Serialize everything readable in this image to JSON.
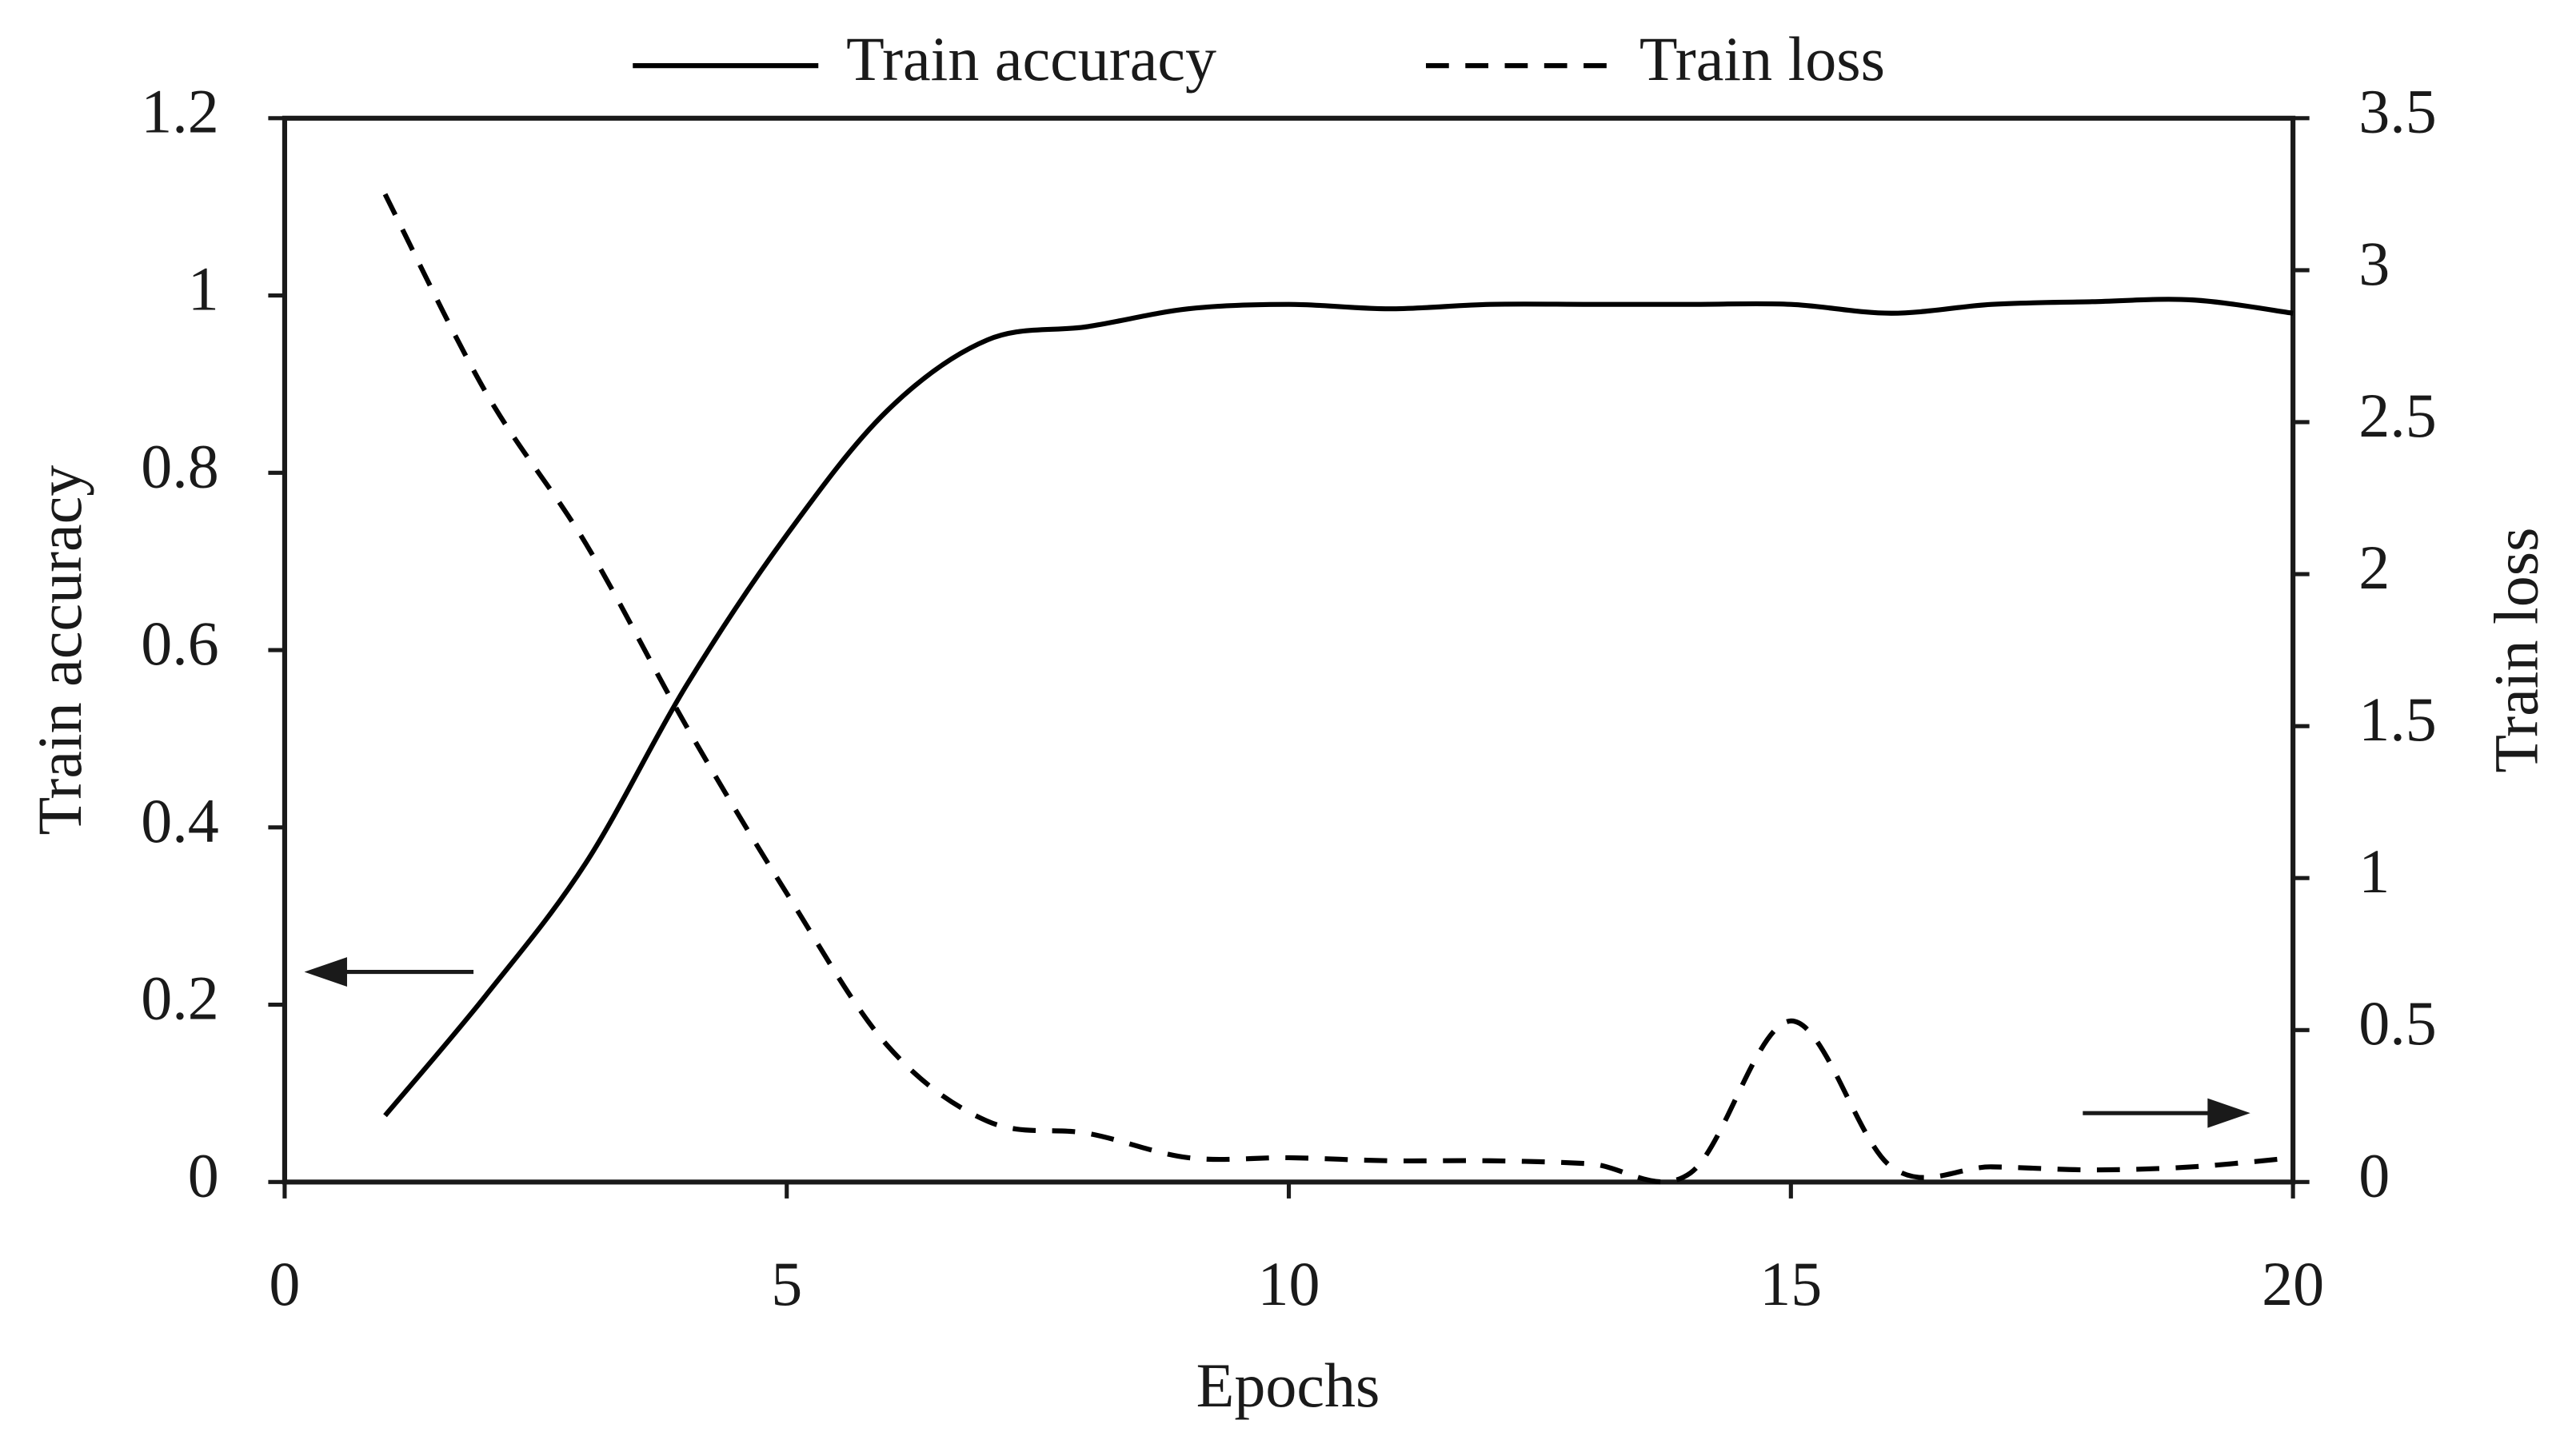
{
  "chart_data": {
    "type": "line",
    "x_label": "Epochs",
    "y_label": "Train accuracy",
    "y2_label": "Train loss",
    "x": [
      1,
      2,
      3,
      4,
      5,
      6,
      7,
      8,
      9,
      10,
      11,
      12,
      13,
      14,
      15,
      16,
      17,
      18,
      19,
      20
    ],
    "series": [
      {
        "name": "Train accuracy",
        "color": "#000000",
        "line_style": "solid",
        "values": [
          0.075,
          0.21,
          0.36,
          0.56,
          0.73,
          0.87,
          0.95,
          0.965,
          0.985,
          0.99,
          0.985,
          0.99,
          0.99,
          0.99,
          0.99,
          0.98,
          0.99,
          0.993,
          0.995,
          0.98
        ]
      },
      {
        "name": "Train loss",
        "color": "#000000",
        "line_style": "dashed",
        "axis": "y2",
        "values": [
          3.25,
          2.6,
          2.1,
          1.5,
          0.95,
          0.45,
          0.2,
          0.16,
          0.08,
          0.08,
          0.07,
          0.07,
          0.06,
          0.03,
          0.53,
          0.05,
          0.05,
          0.04,
          0.05,
          0.08
        ]
      }
    ],
    "xlim": [
      0,
      20
    ],
    "xticks": [
      0,
      5,
      10,
      15,
      20
    ],
    "ylim": [
      0,
      1.2
    ],
    "yticks": [
      0,
      0.2,
      0.4,
      0.6,
      0.8,
      1,
      1.2
    ],
    "y2lim": [
      0,
      3.5
    ],
    "y2ticks": [
      0,
      0.5,
      1,
      1.5,
      2,
      2.5,
      3,
      3.5
    ],
    "legend": "top",
    "grid": false
  }
}
